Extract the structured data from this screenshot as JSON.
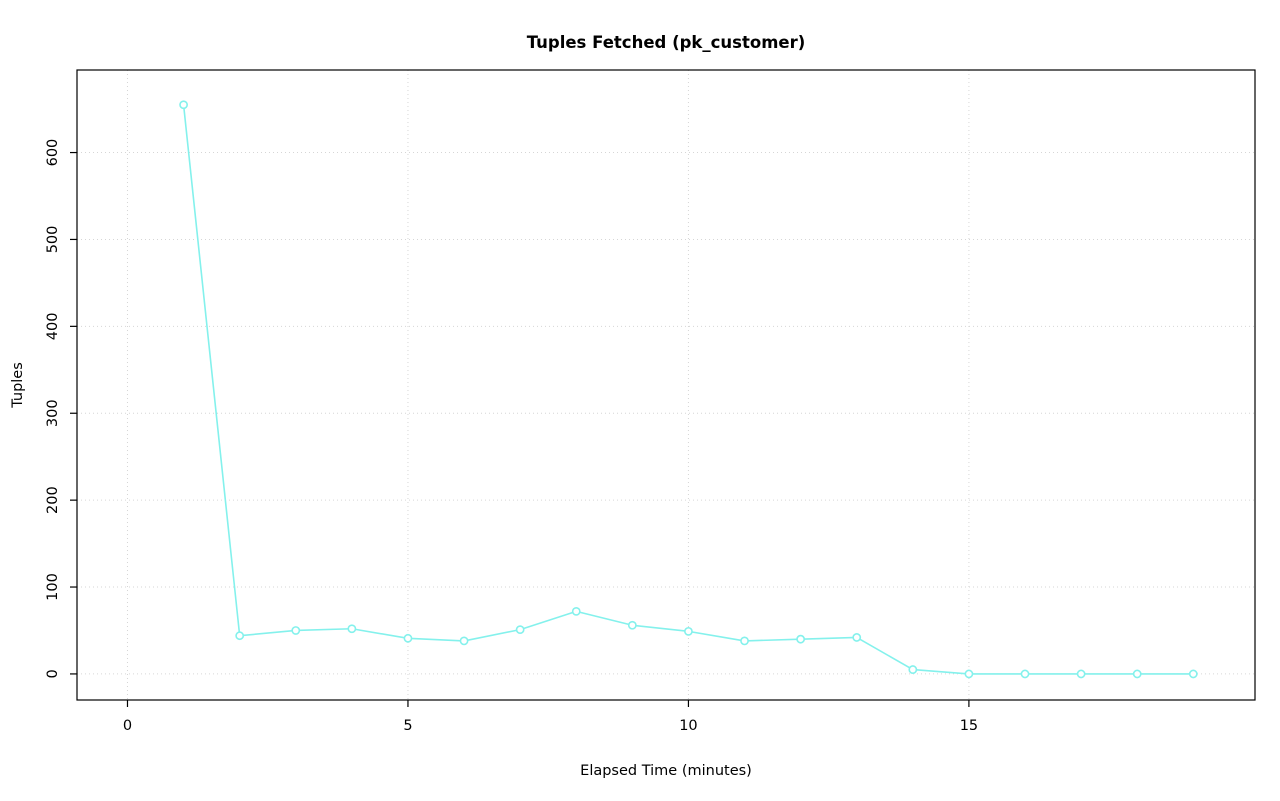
{
  "chart_data": {
    "type": "line",
    "title": "Tuples Fetched (pk_customer)",
    "xlabel": "Elapsed Time (minutes)",
    "ylabel": "Tuples",
    "x": [
      1,
      2,
      3,
      4,
      5,
      6,
      7,
      8,
      9,
      10,
      11,
      12,
      13,
      14,
      15,
      16,
      17,
      18,
      19
    ],
    "y": [
      655,
      44,
      50,
      52,
      41,
      38,
      51,
      72,
      56,
      49,
      38,
      40,
      42,
      5,
      0,
      0,
      0,
      0,
      0
    ],
    "xticks": [
      0,
      5,
      10,
      15
    ],
    "yticks": [
      0,
      100,
      200,
      300,
      400,
      500,
      600
    ],
    "xlim": [
      -0.9,
      20.1
    ],
    "ylim": [
      -30,
      695
    ],
    "grid": "dotted",
    "legend": "none",
    "marker": "open-circle",
    "line_color": "#84f1ec",
    "grid_color": "#d6d6d6",
    "box_color": "#000000",
    "text_color": "#000000",
    "background_color": "#ffffff"
  }
}
